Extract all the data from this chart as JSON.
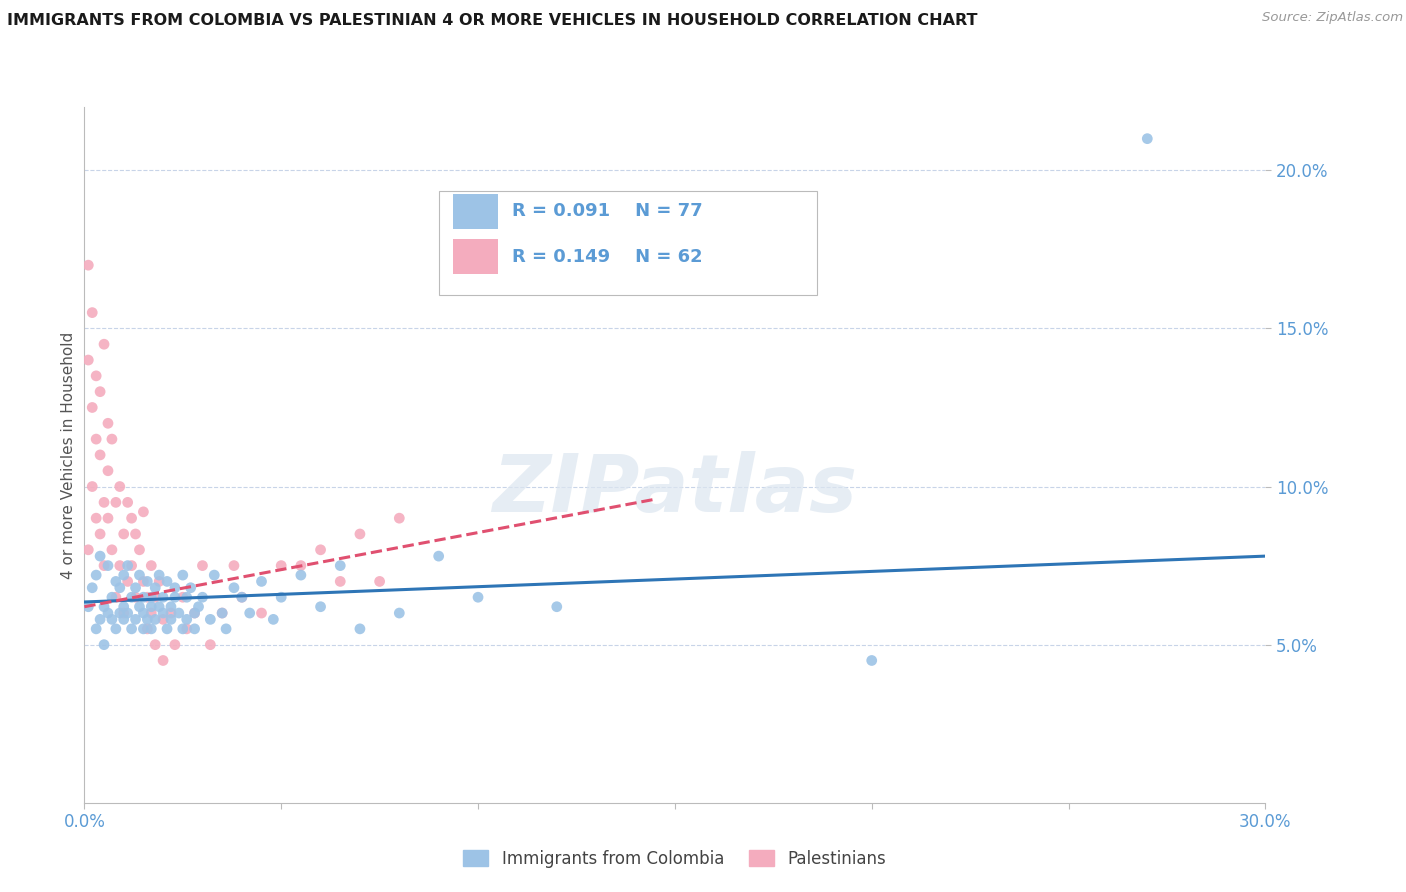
{
  "title": "IMMIGRANTS FROM COLOMBIA VS PALESTINIAN 4 OR MORE VEHICLES IN HOUSEHOLD CORRELATION CHART",
  "source": "Source: ZipAtlas.com",
  "ylabel": "4 or more Vehicles in Household",
  "xlim": [
    0.0,
    0.3
  ],
  "ylim": [
    0.0,
    0.22
  ],
  "xticks": [
    0.0,
    0.05,
    0.1,
    0.15,
    0.2,
    0.25,
    0.3
  ],
  "xticklabels": [
    "0.0%",
    "",
    "",
    "",
    "",
    "",
    "30.0%"
  ],
  "yticks": [
    0.05,
    0.1,
    0.15,
    0.2
  ],
  "yticklabels": [
    "5.0%",
    "10.0%",
    "15.0%",
    "20.0%"
  ],
  "blue_r": "R = 0.091",
  "blue_n": "N = 77",
  "pink_r": "R = 0.149",
  "pink_n": "N = 62",
  "legend_label_blue": "Immigrants from Colombia",
  "legend_label_pink": "Palestinians",
  "title_color": "#1a1a1a",
  "axis_color": "#5b9bd5",
  "watermark": "ZIPatlas",
  "blue_color": "#9dc3e6",
  "pink_color": "#f4acbe",
  "blue_line_color": "#2e75b6",
  "pink_line_color": "#e05070",
  "grid_color": "#c8d4e8",
  "blue_scatter": [
    [
      0.001,
      0.062
    ],
    [
      0.002,
      0.068
    ],
    [
      0.003,
      0.055
    ],
    [
      0.003,
      0.072
    ],
    [
      0.004,
      0.058
    ],
    [
      0.004,
      0.078
    ],
    [
      0.005,
      0.062
    ],
    [
      0.005,
      0.05
    ],
    [
      0.006,
      0.06
    ],
    [
      0.006,
      0.075
    ],
    [
      0.007,
      0.065
    ],
    [
      0.007,
      0.058
    ],
    [
      0.008,
      0.07
    ],
    [
      0.008,
      0.055
    ],
    [
      0.009,
      0.06
    ],
    [
      0.009,
      0.068
    ],
    [
      0.01,
      0.062
    ],
    [
      0.01,
      0.072
    ],
    [
      0.01,
      0.058
    ],
    [
      0.011,
      0.06
    ],
    [
      0.011,
      0.075
    ],
    [
      0.012,
      0.065
    ],
    [
      0.012,
      0.055
    ],
    [
      0.013,
      0.068
    ],
    [
      0.013,
      0.058
    ],
    [
      0.014,
      0.062
    ],
    [
      0.014,
      0.072
    ],
    [
      0.015,
      0.06
    ],
    [
      0.015,
      0.065
    ],
    [
      0.015,
      0.055
    ],
    [
      0.016,
      0.07
    ],
    [
      0.016,
      0.058
    ],
    [
      0.017,
      0.062
    ],
    [
      0.017,
      0.065
    ],
    [
      0.017,
      0.055
    ],
    [
      0.018,
      0.068
    ],
    [
      0.018,
      0.058
    ],
    [
      0.019,
      0.062
    ],
    [
      0.019,
      0.072
    ],
    [
      0.02,
      0.06
    ],
    [
      0.02,
      0.065
    ],
    [
      0.021,
      0.055
    ],
    [
      0.021,
      0.07
    ],
    [
      0.022,
      0.062
    ],
    [
      0.022,
      0.058
    ],
    [
      0.023,
      0.065
    ],
    [
      0.023,
      0.068
    ],
    [
      0.024,
      0.06
    ],
    [
      0.025,
      0.055
    ],
    [
      0.025,
      0.072
    ],
    [
      0.026,
      0.058
    ],
    [
      0.026,
      0.065
    ],
    [
      0.027,
      0.068
    ],
    [
      0.028,
      0.06
    ],
    [
      0.028,
      0.055
    ],
    [
      0.029,
      0.062
    ],
    [
      0.03,
      0.065
    ],
    [
      0.032,
      0.058
    ],
    [
      0.033,
      0.072
    ],
    [
      0.035,
      0.06
    ],
    [
      0.036,
      0.055
    ],
    [
      0.038,
      0.068
    ],
    [
      0.04,
      0.065
    ],
    [
      0.042,
      0.06
    ],
    [
      0.045,
      0.07
    ],
    [
      0.048,
      0.058
    ],
    [
      0.05,
      0.065
    ],
    [
      0.055,
      0.072
    ],
    [
      0.06,
      0.062
    ],
    [
      0.065,
      0.075
    ],
    [
      0.07,
      0.055
    ],
    [
      0.08,
      0.06
    ],
    [
      0.09,
      0.078
    ],
    [
      0.1,
      0.065
    ],
    [
      0.12,
      0.062
    ],
    [
      0.2,
      0.045
    ],
    [
      0.27,
      0.21
    ]
  ],
  "pink_scatter": [
    [
      0.001,
      0.08
    ],
    [
      0.001,
      0.14
    ],
    [
      0.001,
      0.17
    ],
    [
      0.002,
      0.1
    ],
    [
      0.002,
      0.155
    ],
    [
      0.002,
      0.125
    ],
    [
      0.003,
      0.09
    ],
    [
      0.003,
      0.135
    ],
    [
      0.003,
      0.115
    ],
    [
      0.004,
      0.085
    ],
    [
      0.004,
      0.13
    ],
    [
      0.004,
      0.11
    ],
    [
      0.005,
      0.095
    ],
    [
      0.005,
      0.145
    ],
    [
      0.005,
      0.075
    ],
    [
      0.006,
      0.105
    ],
    [
      0.006,
      0.09
    ],
    [
      0.006,
      0.12
    ],
    [
      0.007,
      0.115
    ],
    [
      0.007,
      0.08
    ],
    [
      0.008,
      0.095
    ],
    [
      0.008,
      0.065
    ],
    [
      0.009,
      0.1
    ],
    [
      0.009,
      0.075
    ],
    [
      0.01,
      0.085
    ],
    [
      0.01,
      0.06
    ],
    [
      0.011,
      0.095
    ],
    [
      0.011,
      0.07
    ],
    [
      0.012,
      0.09
    ],
    [
      0.012,
      0.075
    ],
    [
      0.013,
      0.085
    ],
    [
      0.013,
      0.065
    ],
    [
      0.014,
      0.08
    ],
    [
      0.015,
      0.092
    ],
    [
      0.015,
      0.07
    ],
    [
      0.016,
      0.065
    ],
    [
      0.016,
      0.055
    ],
    [
      0.017,
      0.075
    ],
    [
      0.017,
      0.06
    ],
    [
      0.018,
      0.065
    ],
    [
      0.018,
      0.05
    ],
    [
      0.019,
      0.07
    ],
    [
      0.02,
      0.058
    ],
    [
      0.02,
      0.045
    ],
    [
      0.022,
      0.06
    ],
    [
      0.023,
      0.05
    ],
    [
      0.025,
      0.065
    ],
    [
      0.026,
      0.055
    ],
    [
      0.028,
      0.06
    ],
    [
      0.03,
      0.075
    ],
    [
      0.032,
      0.05
    ],
    [
      0.035,
      0.06
    ],
    [
      0.038,
      0.075
    ],
    [
      0.04,
      0.065
    ],
    [
      0.045,
      0.06
    ],
    [
      0.05,
      0.075
    ],
    [
      0.055,
      0.075
    ],
    [
      0.06,
      0.08
    ],
    [
      0.065,
      0.07
    ],
    [
      0.07,
      0.085
    ],
    [
      0.075,
      0.07
    ],
    [
      0.08,
      0.09
    ]
  ],
  "blue_trend_x": [
    0.0,
    0.3
  ],
  "blue_trend_y": [
    0.0635,
    0.078
  ],
  "pink_trend_x": [
    0.0,
    0.145
  ],
  "pink_trend_y": [
    0.062,
    0.096
  ]
}
